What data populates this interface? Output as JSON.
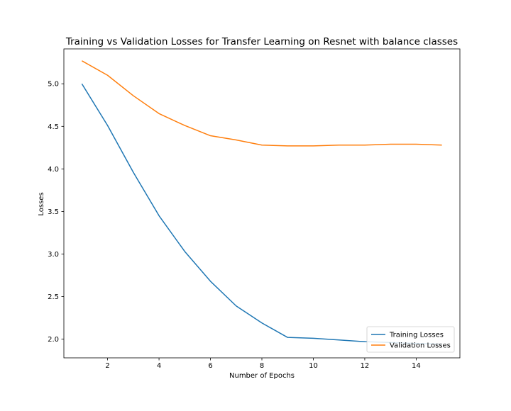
{
  "chart_data": {
    "type": "line",
    "title": "Training vs Validation Losses for Transfer Learning on Resnet with balance classes",
    "xlabel": "Number of Epochs",
    "ylabel": "Losses",
    "xlim": [
      0.3,
      15.7
    ],
    "ylim": [
      1.78,
      5.41
    ],
    "xticks": [
      2,
      4,
      6,
      8,
      10,
      12,
      14
    ],
    "yticks": [
      2.0,
      2.5,
      3.0,
      3.5,
      4.0,
      4.5,
      5.0
    ],
    "xtick_labels": [
      "2",
      "4",
      "6",
      "8",
      "10",
      "12",
      "14"
    ],
    "ytick_labels": [
      "2.0",
      "2.5",
      "3.0",
      "3.5",
      "4.0",
      "4.5",
      "5.0"
    ],
    "grid": false,
    "legend_position": "lower right",
    "x": [
      1,
      2,
      3,
      4,
      5,
      6,
      7,
      8,
      9,
      10,
      11,
      12,
      13,
      14,
      15
    ],
    "series": [
      {
        "name": "Training Losses",
        "color": "#1f77b4",
        "values": [
          5.0,
          4.51,
          3.96,
          3.45,
          3.03,
          2.68,
          2.39,
          2.19,
          2.02,
          2.01,
          1.99,
          1.97,
          1.96,
          1.95,
          1.94
        ]
      },
      {
        "name": "Validation Losses",
        "color": "#ff7f0e",
        "values": [
          5.27,
          5.1,
          4.86,
          4.65,
          4.51,
          4.39,
          4.34,
          4.28,
          4.27,
          4.27,
          4.28,
          4.28,
          4.29,
          4.29,
          4.28
        ]
      }
    ]
  }
}
